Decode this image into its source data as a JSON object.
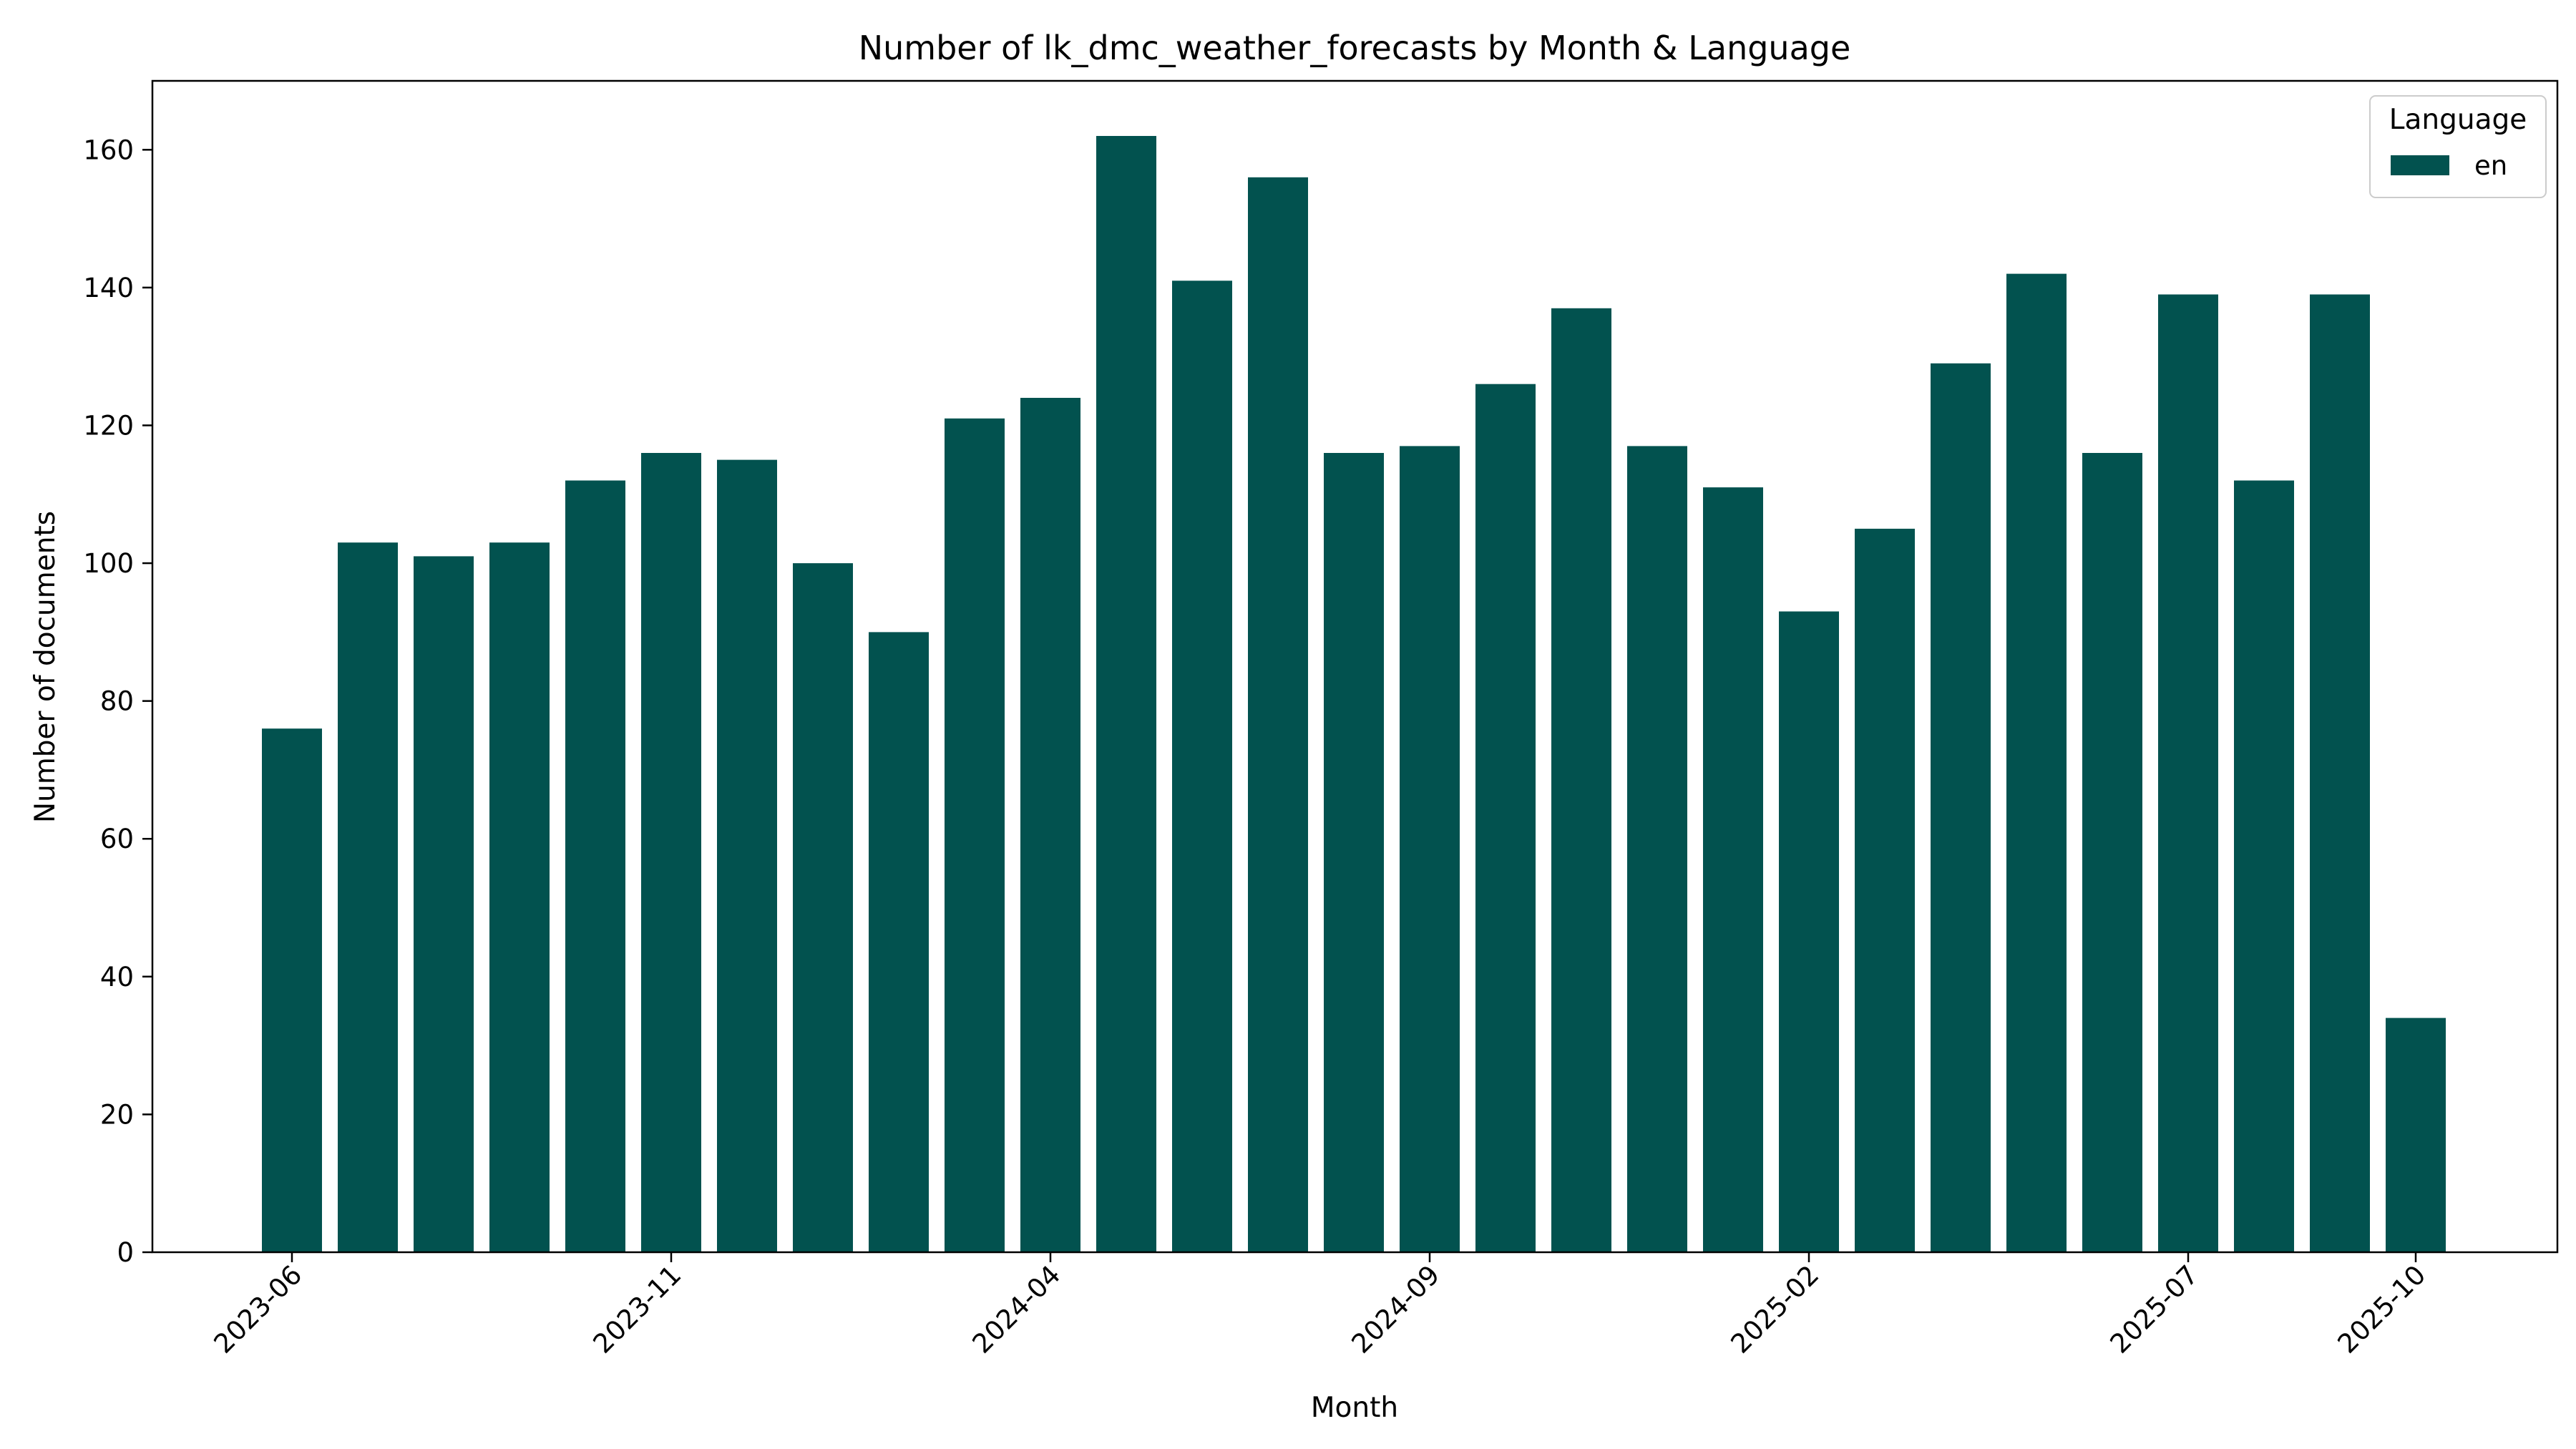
{
  "chart_data": {
    "type": "bar",
    "title": "Number of lk_dmc_weather_forecasts by Month & Language",
    "xlabel": "Month",
    "ylabel": "Number of documents",
    "categories": [
      "2023-06",
      "2023-07",
      "2023-08",
      "2023-09",
      "2023-10",
      "2023-11",
      "2023-12",
      "2024-01",
      "2024-02",
      "2024-03",
      "2024-04",
      "2024-05",
      "2024-06",
      "2024-07",
      "2024-08",
      "2024-09",
      "2024-10",
      "2024-11",
      "2024-12",
      "2025-01",
      "2025-02",
      "2025-03",
      "2025-04",
      "2025-05",
      "2025-06",
      "2025-07",
      "2025-08",
      "2025-09",
      "2025-10"
    ],
    "series": [
      {
        "name": "en",
        "values": [
          76,
          103,
          101,
          103,
          112,
          116,
          115,
          100,
          90,
          121,
          124,
          162,
          141,
          156,
          116,
          117,
          126,
          137,
          117,
          111,
          93,
          105,
          129,
          142,
          116,
          139,
          112,
          139,
          34
        ]
      }
    ],
    "ylim": [
      0,
      170
    ],
    "yticks": [
      0,
      20,
      40,
      60,
      80,
      100,
      120,
      140,
      160
    ],
    "xticks": [
      "2023-06",
      "2023-11",
      "2024-04",
      "2024-09",
      "2025-02",
      "2025-07",
      "2025-10"
    ],
    "legend": {
      "title": "Language",
      "position": "top-right"
    },
    "grid": false,
    "colors": {
      "en": "#02524f"
    }
  }
}
